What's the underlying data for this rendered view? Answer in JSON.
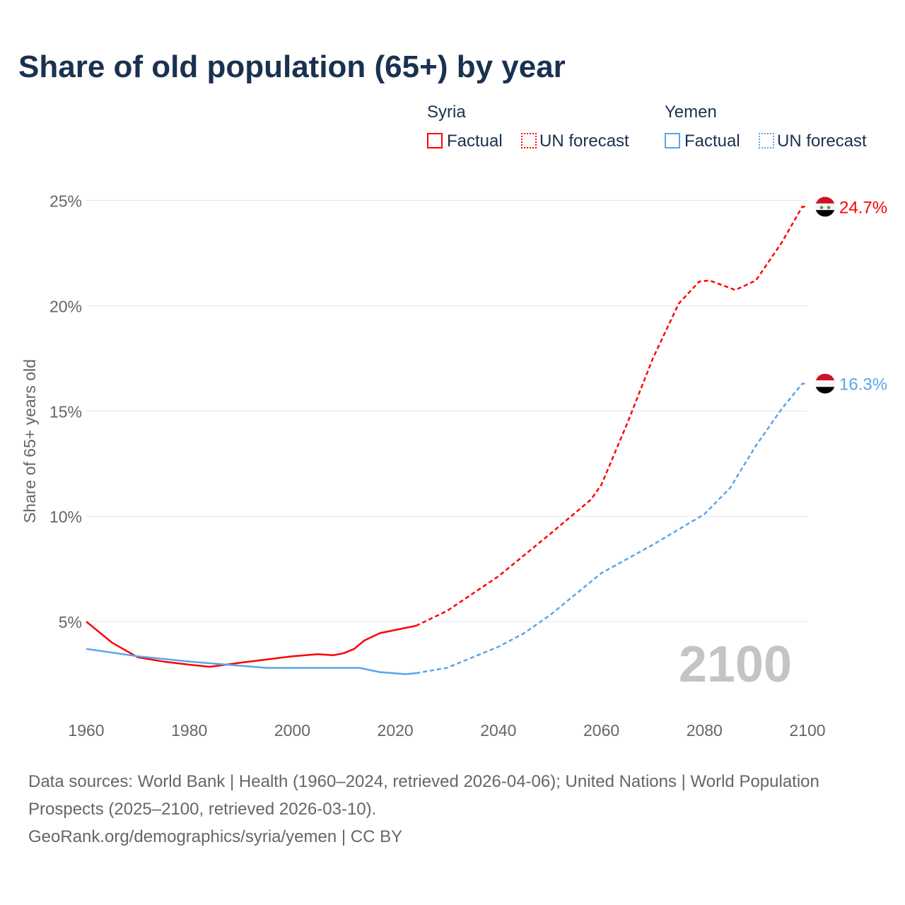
{
  "chart_data": {
    "type": "line",
    "title": "Share of old population (65+) by year",
    "ylabel": "Share of 65+ years old",
    "xlim": [
      1960,
      2100
    ],
    "ylim": [
      0,
      25
    ],
    "yticks": [
      5,
      10,
      15,
      20,
      25
    ],
    "ytick_labels": [
      "5%",
      "10%",
      "15%",
      "20%",
      "25%"
    ],
    "xticks": [
      1960,
      1980,
      2000,
      2020,
      2040,
      2060,
      2080,
      2100
    ],
    "year_label": "2100",
    "legend": [
      {
        "group": "Syria",
        "items": [
          "Factual",
          "UN forecast"
        ],
        "color": "#ff0000"
      },
      {
        "group": "Yemen",
        "items": [
          "Factual",
          "UN forecast"
        ],
        "color": "#5aa5ea"
      }
    ],
    "series": [
      {
        "name": "Syria Factual",
        "color": "#ff0000",
        "dashed": false,
        "x": [
          1960,
          1965,
          1970,
          1975,
          1980,
          1984,
          1990,
          1995,
          2000,
          2005,
          2008,
          2010,
          2012,
          2014,
          2017,
          2020,
          2024
        ],
        "y": [
          5.0,
          4.0,
          3.3,
          3.1,
          2.95,
          2.85,
          3.05,
          3.2,
          3.35,
          3.45,
          3.4,
          3.5,
          3.7,
          4.1,
          4.45,
          4.6,
          4.8
        ]
      },
      {
        "name": "Syria UN forecast",
        "color": "#ff0000",
        "dashed": true,
        "x": [
          2024,
          2030,
          2040,
          2050,
          2058,
          2060,
          2065,
          2070,
          2075,
          2079,
          2081,
          2086,
          2090,
          2095,
          2099,
          2100
        ],
        "y": [
          4.8,
          5.5,
          7.15,
          9.15,
          10.8,
          11.5,
          14.4,
          17.5,
          20.1,
          21.15,
          21.2,
          20.75,
          21.2,
          23.0,
          24.7,
          24.7
        ]
      },
      {
        "name": "Yemen Factual",
        "color": "#5aa5ea",
        "dashed": false,
        "x": [
          1960,
          1970,
          1980,
          1990,
          1995,
          2000,
          2010,
          2013,
          2017,
          2022,
          2024
        ],
        "y": [
          3.7,
          3.35,
          3.1,
          2.9,
          2.8,
          2.8,
          2.8,
          2.8,
          2.6,
          2.5,
          2.55
        ]
      },
      {
        "name": "Yemen UN forecast",
        "color": "#5aa5ea",
        "dashed": true,
        "x": [
          2024,
          2030,
          2040,
          2045,
          2050,
          2060,
          2070,
          2080,
          2085,
          2090,
          2095,
          2099,
          2100
        ],
        "y": [
          2.55,
          2.8,
          3.8,
          4.45,
          5.3,
          7.3,
          8.65,
          10.1,
          11.35,
          13.35,
          15.1,
          16.3,
          16.3
        ]
      }
    ],
    "end_labels": [
      {
        "country": "Syria",
        "value": "24.7%",
        "v": 24.7,
        "color": "#ff0000"
      },
      {
        "country": "Yemen",
        "value": "16.3%",
        "v": 16.3,
        "color": "#5aa5ea"
      }
    ]
  },
  "legend": {
    "syria": "Syria",
    "yemen": "Yemen",
    "factual": "Factual",
    "forecast": "UN forecast"
  },
  "footer": {
    "line1": "Data sources: World Bank | Health (1960–2024, retrieved 2026-04-06); United Nations | World Population Prospects (2025–2100, retrieved 2026-03-10).",
    "line2": "GeoRank.org/demographics/syria/yemen | CC BY"
  }
}
